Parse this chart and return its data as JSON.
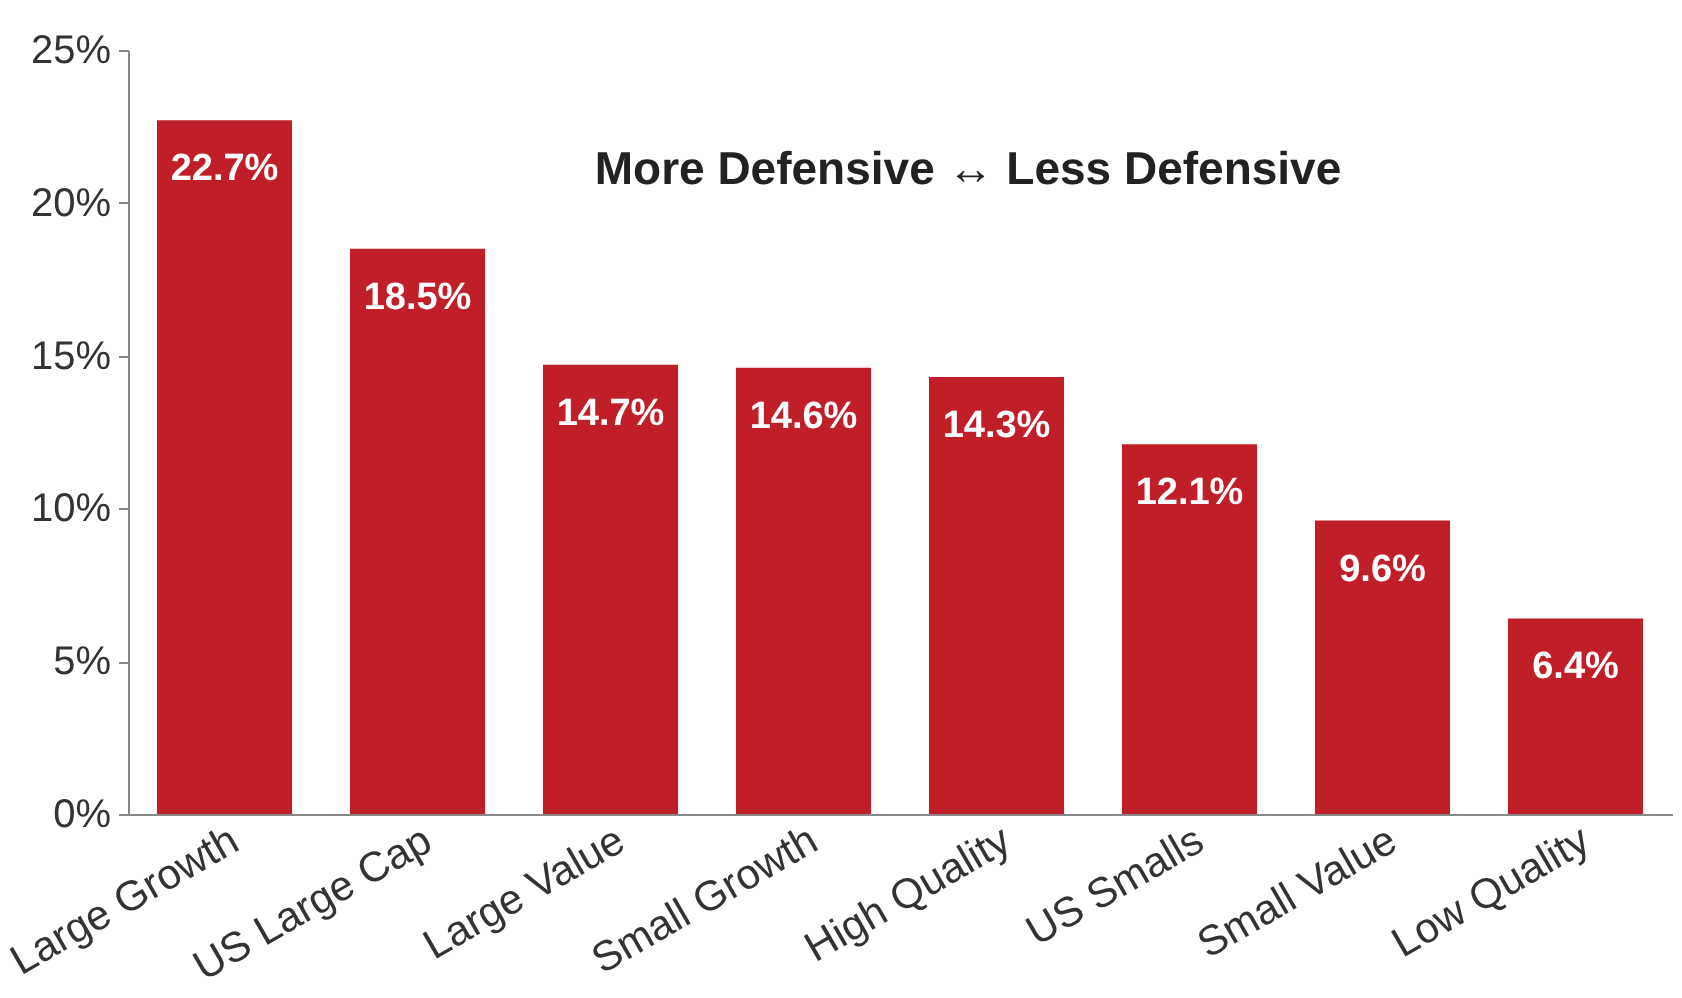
{
  "chart_data": {
    "type": "bar",
    "categories": [
      "Large Growth",
      "US Large Cap",
      "Large Value",
      "Small Growth",
      "High Quality",
      "US Smalls",
      "Small Value",
      "Low Quality"
    ],
    "values": [
      22.7,
      18.5,
      14.7,
      14.6,
      14.3,
      12.1,
      9.6,
      6.4
    ],
    "value_labels": [
      "22.7%",
      "18.5%",
      "14.7%",
      "14.6%",
      "14.3%",
      "12.1%",
      "9.6%",
      "6.4%"
    ],
    "color": "#c01f28",
    "ylim": [
      0,
      25
    ],
    "yticks": [
      {
        "value": 0,
        "label": "0%"
      },
      {
        "value": 5,
        "label": "5%"
      },
      {
        "value": 10,
        "label": "10%"
      },
      {
        "value": 15,
        "label": "15%"
      },
      {
        "value": 20,
        "label": "20%"
      },
      {
        "value": 25,
        "label": "25%"
      }
    ],
    "annotations": [
      "More Defensive ↔ Less Defensive"
    ],
    "grid": false
  }
}
